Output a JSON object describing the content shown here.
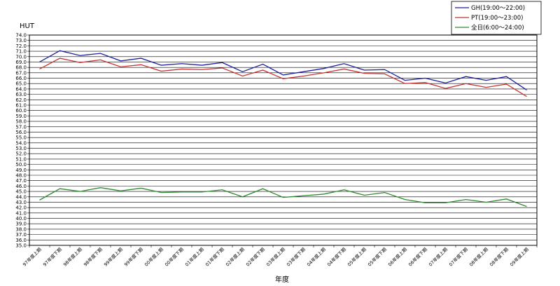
{
  "chart_data": {
    "type": "line",
    "ylabel": "HUT",
    "xlabel": "年度",
    "ylim": [
      35,
      74
    ],
    "ytick_step": 1,
    "grid": true,
    "legend_position": "top-right",
    "categories": [
      "97年度上期",
      "97年度下期",
      "98年度上期",
      "98年度下期",
      "99年度上期",
      "99年度下期",
      "00年度上期",
      "00年度下期",
      "01年度上期",
      "01年度下期",
      "02年度上期",
      "02年度下期",
      "03年度上期",
      "03年度下期",
      "04年度上期",
      "04年度下期",
      "05年度上期",
      "05年度下期",
      "06年度上期",
      "06年度下期",
      "07年度上期",
      "07年度下期",
      "08年度上期",
      "08年度下期",
      "09年度上期"
    ],
    "series": [
      {
        "name": "GH(19:00～22:00)",
        "color": "#1f1f9f",
        "values": [
          69.0,
          71.1,
          70.2,
          70.6,
          69.2,
          69.7,
          68.4,
          68.7,
          68.4,
          68.9,
          67.2,
          68.6,
          66.6,
          67.2,
          67.8,
          68.7,
          67.5,
          67.6,
          65.6,
          66.0,
          65.1,
          66.3,
          65.6,
          66.3,
          63.8
        ]
      },
      {
        "name": "PT(19:00～23:00)",
        "color": "#c83232",
        "values": [
          67.7,
          69.7,
          68.9,
          69.4,
          68.1,
          68.5,
          67.3,
          67.7,
          67.6,
          67.9,
          66.4,
          67.5,
          65.9,
          66.4,
          67.0,
          67.7,
          66.9,
          66.8,
          65.0,
          65.2,
          64.1,
          65.0,
          64.3,
          64.9,
          62.6
        ]
      },
      {
        "name": "全日(6:00～24:00)",
        "color": "#2e8b2e",
        "values": [
          43.4,
          45.5,
          45.0,
          45.7,
          45.1,
          45.6,
          44.8,
          44.9,
          44.9,
          45.3,
          44.0,
          45.5,
          43.9,
          44.2,
          44.5,
          45.3,
          44.3,
          44.8,
          43.5,
          42.9,
          42.9,
          43.5,
          43.0,
          43.6,
          42.2
        ]
      }
    ]
  }
}
